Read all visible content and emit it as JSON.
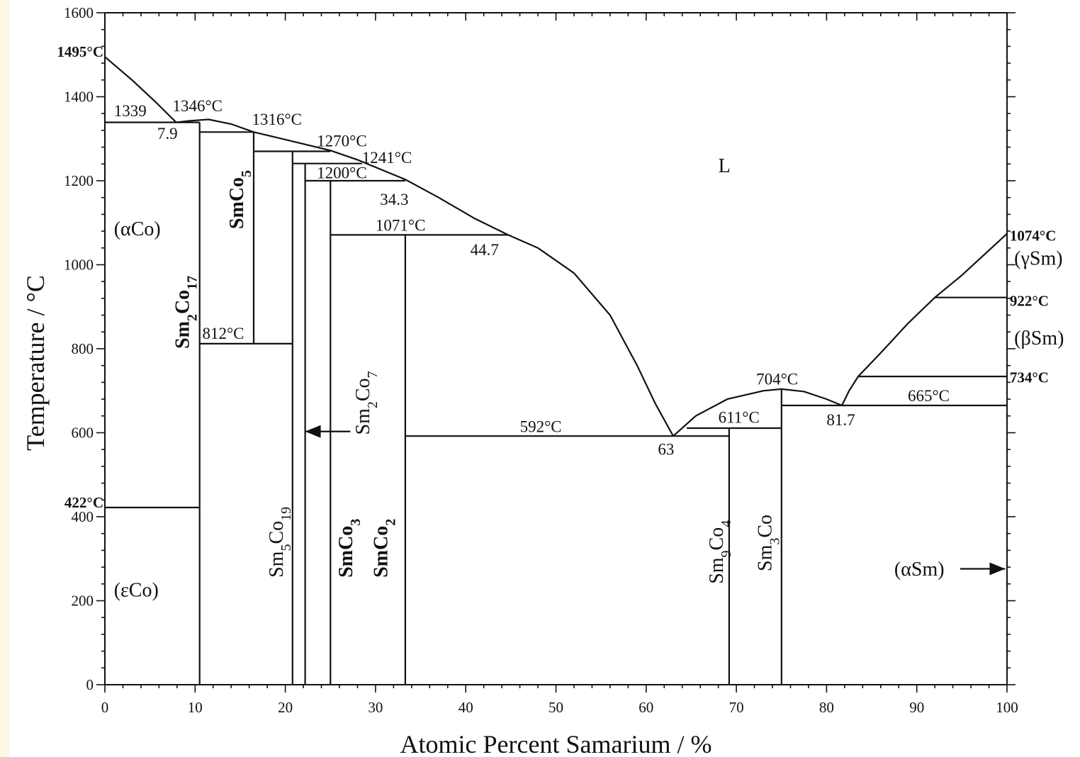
{
  "chart_data": {
    "type": "phase-diagram",
    "xlabel": "Atomic Percent Samarium / %",
    "ylabel": "Temperature / °C",
    "xlim": [
      0,
      100
    ],
    "ylim": [
      0,
      1600
    ],
    "x_ticks": [
      "0",
      "10",
      "20",
      "30",
      "40",
      "50",
      "60",
      "70",
      "80",
      "90",
      "100"
    ],
    "y_ticks": [
      "0",
      "200",
      "400",
      "600",
      "800",
      "1000",
      "1200",
      "1400",
      "1600"
    ],
    "liquidus": [
      [
        [
          0,
          1495
        ],
        [
          3,
          1440
        ],
        [
          5.5,
          1390
        ],
        [
          7.9,
          1339
        ],
        [
          9.5,
          1343
        ],
        [
          11.5,
          1346
        ],
        [
          14,
          1335
        ],
        [
          16.5,
          1316
        ],
        [
          20,
          1298
        ],
        [
          25,
          1272
        ],
        [
          28,
          1250
        ],
        [
          33.3,
          1203
        ],
        [
          37,
          1160
        ],
        [
          41,
          1110
        ],
        [
          44.7,
          1071
        ],
        [
          48,
          1040
        ],
        [
          52,
          980
        ],
        [
          56,
          880
        ],
        [
          59,
          760
        ],
        [
          61,
          670
        ],
        [
          63,
          592
        ]
      ],
      [
        [
          63,
          592
        ],
        [
          65.5,
          640
        ],
        [
          69,
          680
        ],
        [
          73,
          700
        ],
        [
          75,
          704
        ],
        [
          77.5,
          698
        ],
        [
          80,
          680
        ],
        [
          81.7,
          665
        ]
      ],
      [
        [
          81.7,
          665
        ],
        [
          82.5,
          700
        ],
        [
          83.5,
          734
        ],
        [
          86,
          790
        ],
        [
          89,
          860
        ],
        [
          92,
          922
        ],
        [
          95,
          975
        ],
        [
          100,
          1074
        ]
      ]
    ],
    "lines": [
      [
        [
          0,
          1339
        ],
        [
          10.5,
          1339
        ]
      ],
      [
        [
          10.5,
          1316
        ],
        [
          16.5,
          1316
        ]
      ],
      [
        [
          16.5,
          1270
        ],
        [
          25,
          1270
        ]
      ],
      [
        [
          20.8,
          1241
        ],
        [
          28.5,
          1241
        ]
      ],
      [
        [
          22.2,
          1200
        ],
        [
          33.3,
          1200
        ]
      ],
      [
        [
          25,
          1071
        ],
        [
          44.7,
          1071
        ]
      ],
      [
        [
          10.5,
          812
        ],
        [
          20.8,
          812
        ]
      ],
      [
        [
          0,
          422
        ],
        [
          10.5,
          422
        ]
      ],
      [
        [
          33.3,
          592
        ],
        [
          69.2,
          592
        ]
      ],
      [
        [
          64.5,
          611
        ],
        [
          75,
          611
        ]
      ],
      [
        [
          75,
          665
        ],
        [
          100,
          665
        ]
      ],
      [
        [
          83.5,
          734
        ],
        [
          100,
          734
        ]
      ],
      [
        [
          92,
          922
        ],
        [
          100,
          922
        ]
      ],
      [
        [
          10.5,
          0
        ],
        [
          10.5,
          1339
        ]
      ],
      [
        [
          16.5,
          812
        ],
        [
          16.5,
          1316
        ]
      ],
      [
        [
          20.8,
          0
        ],
        [
          20.8,
          1270
        ]
      ],
      [
        [
          22.2,
          0
        ],
        [
          22.2,
          1241
        ]
      ],
      [
        [
          25,
          0
        ],
        [
          25,
          1200
        ]
      ],
      [
        [
          33.3,
          0
        ],
        [
          33.3,
          1071
        ]
      ],
      [
        [
          69.2,
          0
        ],
        [
          69.2,
          611
        ]
      ],
      [
        [
          75,
          0
        ],
        [
          75,
          704
        ]
      ]
    ],
    "annotations": [
      {
        "text": "1495°C",
        "x": 0,
        "y": 1495,
        "style": "bold",
        "anchor": "end"
      },
      {
        "text": "1339",
        "x": 1,
        "y": 1354,
        "style": "normal",
        "anchor": "start"
      },
      {
        "text": "1346°C",
        "x": 7.5,
        "y": 1365,
        "style": "normal",
        "anchor": "start"
      },
      {
        "text": "7.9",
        "x": 5.8,
        "y": 1300,
        "style": "normal",
        "anchor": "start"
      },
      {
        "text": "1316°C",
        "x": 16.3,
        "y": 1333,
        "style": "normal",
        "anchor": "start"
      },
      {
        "text": "1270°C",
        "x": 23.5,
        "y": 1282,
        "style": "normal",
        "anchor": "start"
      },
      {
        "text": "1241°C",
        "x": 28.5,
        "y": 1242,
        "style": "normal",
        "anchor": "start"
      },
      {
        "text": "1200°C",
        "x": 23.5,
        "y": 1206,
        "style": "normal",
        "anchor": "start"
      },
      {
        "text": "34.3",
        "x": 30.5,
        "y": 1143,
        "style": "normal",
        "anchor": "start"
      },
      {
        "text": "1071°C",
        "x": 30,
        "y": 1081,
        "style": "normal",
        "anchor": "start"
      },
      {
        "text": "44.7",
        "x": 40.5,
        "y": 1023,
        "style": "normal",
        "anchor": "start"
      },
      {
        "text": "812°C",
        "x": 10.8,
        "y": 824,
        "style": "normal",
        "anchor": "start"
      },
      {
        "text": "422°C",
        "x": 0,
        "y": 422,
        "style": "bold",
        "anchor": "end"
      },
      {
        "text": "592°C",
        "x": 46,
        "y": 602,
        "style": "normal",
        "anchor": "start"
      },
      {
        "text": "63",
        "x": 61.3,
        "y": 548,
        "style": "normal",
        "anchor": "start"
      },
      {
        "text": "611°C",
        "x": 68,
        "y": 624,
        "style": "normal",
        "anchor": "start"
      },
      {
        "text": "704°C",
        "x": 72.2,
        "y": 715,
        "style": "normal",
        "anchor": "start"
      },
      {
        "text": "665°C",
        "x": 89,
        "y": 675,
        "style": "normal",
        "anchor": "start"
      },
      {
        "text": "81.7",
        "x": 80,
        "y": 618,
        "style": "normal",
        "anchor": "start"
      },
      {
        "text": "1074°C",
        "x": 100.3,
        "y": 1057,
        "style": "bold",
        "anchor": "start"
      },
      {
        "text": "922°C",
        "x": 100.3,
        "y": 902,
        "style": "bold",
        "anchor": "start"
      },
      {
        "text": "734°C",
        "x": 100.3,
        "y": 720,
        "style": "bold",
        "anchor": "start"
      }
    ],
    "phase_labels": [
      {
        "text": "L",
        "x": 68,
        "y": 1220,
        "style": "normal",
        "rotate": false
      },
      {
        "text": "(αCo)",
        "x": 1,
        "y": 1070,
        "style": "normal",
        "rotate": false
      },
      {
        "text": "(εCo)",
        "x": 1,
        "y": 210,
        "style": "normal",
        "rotate": false
      },
      {
        "text": "(γSm)",
        "x": 100.8,
        "y": 1000,
        "style": "normal",
        "rotate": false
      },
      {
        "text": "(βSm)",
        "x": 100.8,
        "y": 810,
        "style": "normal",
        "rotate": false
      },
      {
        "text": "(αSm)",
        "x": 87.5,
        "y": 260,
        "style": "normal",
        "rotate": false
      },
      {
        "text": "Sm2Co17",
        "x": 9.3,
        "y": 800,
        "style": "bold",
        "rotate": true
      },
      {
        "text": "SmCo5",
        "x": 15.3,
        "y": 1085,
        "style": "bold",
        "rotate": true
      },
      {
        "text": "Sm5Co19",
        "x": 19.7,
        "y": 255,
        "style": "normal",
        "rotate": true
      },
      {
        "text": "Sm2Co7",
        "x": 29.3,
        "y": 595,
        "style": "normal",
        "rotate": true
      },
      {
        "text": "SmCo3",
        "x": 27.4,
        "y": 255,
        "style": "bold",
        "rotate": true
      },
      {
        "text": "SmCo2",
        "x": 31.3,
        "y": 255,
        "style": "bold",
        "rotate": true
      },
      {
        "text": "Sm9Co4",
        "x": 68.5,
        "y": 240,
        "style": "normal",
        "rotate": true
      },
      {
        "text": "Sm3Co",
        "x": 73.9,
        "y": 270,
        "style": "normal",
        "rotate": true
      }
    ],
    "arrows": [
      {
        "from": [
          27.2,
          603
        ],
        "to": [
          22.2,
          603
        ]
      },
      {
        "from": [
          94.8,
          276
        ],
        "to": [
          99.8,
          276
        ]
      }
    ]
  }
}
